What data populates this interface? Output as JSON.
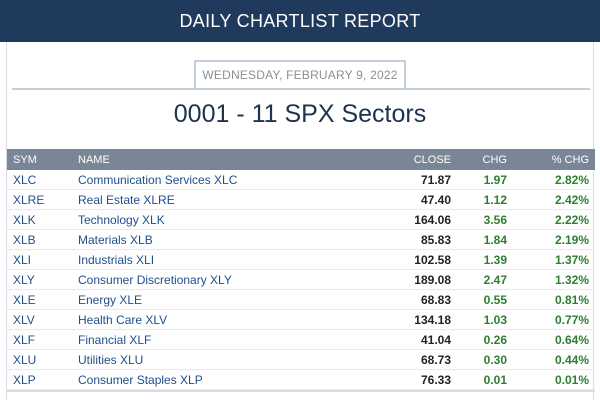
{
  "header": {
    "title": "DAILY CHARTLIST REPORT"
  },
  "report": {
    "date": "WEDNESDAY, FEBRUARY 9, 2022",
    "list_title": "0001 - 11 SPX Sectors"
  },
  "table": {
    "columns": {
      "sym": "SYM",
      "name": "NAME",
      "close": "CLOSE",
      "chg": "CHG",
      "pct_chg": "% CHG"
    },
    "rows": [
      {
        "sym": "XLC",
        "name": "Communication Services XLC",
        "close": "71.87",
        "chg": "1.97",
        "pct_chg": "2.82%"
      },
      {
        "sym": "XLRE",
        "name": "Real Estate XLRE",
        "close": "47.40",
        "chg": "1.12",
        "pct_chg": "2.42%"
      },
      {
        "sym": "XLK",
        "name": "Technology XLK",
        "close": "164.06",
        "chg": "3.56",
        "pct_chg": "2.22%"
      },
      {
        "sym": "XLB",
        "name": "Materials XLB",
        "close": "85.83",
        "chg": "1.84",
        "pct_chg": "2.19%"
      },
      {
        "sym": "XLI",
        "name": "Industrials XLI",
        "close": "102.58",
        "chg": "1.39",
        "pct_chg": "1.37%"
      },
      {
        "sym": "XLY",
        "name": "Consumer Discretionary XLY",
        "close": "189.08",
        "chg": "2.47",
        "pct_chg": "1.32%"
      },
      {
        "sym": "XLE",
        "name": "Energy XLE",
        "close": "68.83",
        "chg": "0.55",
        "pct_chg": "0.81%"
      },
      {
        "sym": "XLV",
        "name": "Health Care XLV",
        "close": "134.18",
        "chg": "1.03",
        "pct_chg": "0.77%"
      },
      {
        "sym": "XLF",
        "name": "Financial XLF",
        "close": "41.04",
        "chg": "0.26",
        "pct_chg": "0.64%"
      },
      {
        "sym": "XLU",
        "name": "Utilities XLU",
        "close": "68.73",
        "chg": "0.30",
        "pct_chg": "0.44%"
      },
      {
        "sym": "XLP",
        "name": "Consumer Staples XLP",
        "close": "76.33",
        "chg": "0.01",
        "pct_chg": "0.01%"
      }
    ]
  },
  "colors": {
    "header_bg": "#1f3a5c",
    "table_header_bg": "#7a8696",
    "link": "#1f4e8c",
    "positive": "#2e7d32"
  }
}
